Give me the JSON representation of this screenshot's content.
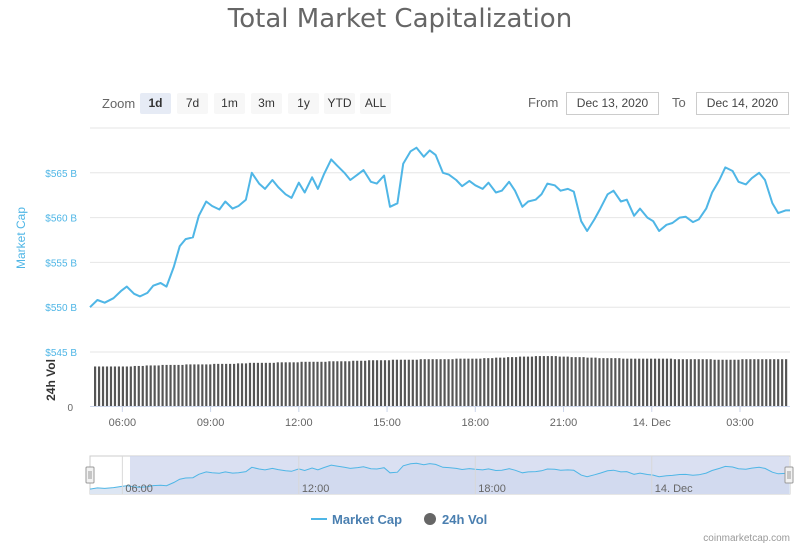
{
  "chart_data": {
    "type": "line",
    "title": "Total Market Capitalization",
    "zoom": {
      "label": "Zoom",
      "buttons": [
        "1d",
        "7d",
        "1m",
        "3m",
        "1y",
        "YTD",
        "ALL"
      ],
      "active": "1d"
    },
    "range": {
      "from_label": "From",
      "from": "Dec 13, 2020",
      "to_label": "To",
      "to": "Dec 14, 2020"
    },
    "y_axis": {
      "label": "Market Cap",
      "ticks": [
        "$545 B",
        "$550 B",
        "$555 B",
        "$560 B",
        "$565 B"
      ],
      "tick_values": [
        545,
        550,
        555,
        560,
        565
      ],
      "ylim": [
        545,
        570
      ],
      "color": "#4fb6e6"
    },
    "volume_axis": {
      "label": "24h Vol",
      "ticks": [
        "0"
      ]
    },
    "x_axis": {
      "ticks": [
        "06:00",
        "09:00",
        "12:00",
        "15:00",
        "18:00",
        "21:00",
        "14. Dec",
        "03:00"
      ],
      "tick_hours": [
        6,
        9,
        12,
        15,
        18,
        21,
        24,
        27
      ],
      "xlim": [
        4.9,
        28.7
      ]
    },
    "navigator": {
      "ticks": [
        "06:00",
        "12:00",
        "18:00",
        "14. Dec"
      ],
      "tick_hours": [
        6,
        12,
        18,
        24
      ]
    },
    "legend": [
      {
        "name": "Market Cap",
        "color": "#4fb6e6",
        "symbol": "line"
      },
      {
        "name": "24h Vol",
        "color": "#666666",
        "symbol": "circle"
      }
    ],
    "series": [
      {
        "name": "Market Cap",
        "color": "#4fb6e6",
        "x": [
          4.9,
          5.15,
          5.4,
          5.7,
          5.95,
          6.15,
          6.4,
          6.6,
          6.85,
          7.05,
          7.3,
          7.5,
          7.75,
          7.95,
          8.15,
          8.4,
          8.6,
          8.85,
          9.05,
          9.3,
          9.5,
          9.75,
          9.95,
          10.2,
          10.4,
          10.65,
          10.85,
          11.1,
          11.3,
          11.55,
          11.75,
          12.0,
          12.2,
          12.45,
          12.65,
          12.85,
          13.1,
          13.3,
          13.55,
          13.75,
          14.0,
          14.2,
          14.45,
          14.65,
          14.9,
          15.1,
          15.35,
          15.55,
          15.8,
          16.0,
          16.25,
          16.45,
          16.65,
          16.9,
          17.1,
          17.35,
          17.55,
          17.8,
          18.0,
          18.25,
          18.45,
          18.7,
          18.9,
          19.15,
          19.35,
          19.6,
          19.8,
          20.05,
          20.25,
          20.45,
          20.7,
          20.9,
          21.15,
          21.35,
          21.6,
          21.8,
          22.05,
          22.25,
          22.5,
          22.7,
          22.95,
          23.15,
          23.4,
          23.6,
          23.85,
          24.05,
          24.25,
          24.5,
          24.7,
          24.95,
          25.15,
          25.4,
          25.6,
          25.85,
          26.05,
          26.3,
          26.5,
          26.75,
          26.95,
          27.2,
          27.4,
          27.65,
          27.85,
          28.1,
          28.3,
          28.55,
          28.7
        ],
        "values": [
          550.0,
          550.8,
          550.5,
          551.0,
          551.8,
          552.3,
          551.5,
          551.2,
          551.6,
          552.4,
          552.7,
          552.3,
          554.5,
          556.8,
          557.6,
          557.8,
          560.2,
          561.8,
          561.3,
          560.9,
          561.8,
          561.0,
          561.3,
          562.0,
          565.0,
          563.8,
          563.2,
          564.2,
          563.4,
          562.6,
          562.2,
          563.9,
          562.8,
          564.5,
          563.2,
          564.8,
          566.5,
          565.8,
          565.0,
          564.2,
          564.8,
          565.3,
          564.0,
          563.8,
          564.7,
          561.2,
          561.6,
          566.0,
          567.4,
          567.8,
          566.8,
          567.5,
          567.0,
          565.0,
          564.8,
          564.2,
          563.5,
          564.1,
          563.6,
          563.2,
          563.9,
          562.8,
          563.0,
          564.0,
          563.0,
          561.2,
          561.8,
          562.0,
          562.6,
          563.8,
          563.6,
          563.0,
          563.2,
          562.9,
          559.6,
          558.5,
          559.8,
          561.0,
          562.6,
          563.0,
          561.8,
          562.0,
          560.2,
          561.0,
          560.0,
          559.6,
          558.5,
          559.2,
          559.4,
          560.0,
          560.1,
          559.5,
          559.8,
          561.0,
          562.8,
          564.2,
          565.6,
          565.2,
          564.0,
          563.7,
          564.4,
          565.0,
          564.2,
          561.6,
          560.5,
          560.8,
          560.8
        ]
      },
      {
        "name": "24h Vol",
        "color": "#666666",
        "note_levels": "relative volume level per bar, 0-1",
        "x_start": 4.9,
        "x_end": 28.7,
        "levels": [
          0.76,
          0.76,
          0.76,
          0.77,
          0.78,
          0.79,
          0.79,
          0.8,
          0.8,
          0.81,
          0.81,
          0.82,
          0.83,
          0.83,
          0.84,
          0.84,
          0.85,
          0.85,
          0.86,
          0.86,
          0.87,
          0.88,
          0.88,
          0.89,
          0.89,
          0.9,
          0.9,
          0.9,
          0.91,
          0.91,
          0.92,
          0.93,
          0.94,
          0.95,
          0.96,
          0.96,
          0.95,
          0.94,
          0.93,
          0.92,
          0.92,
          0.91,
          0.91,
          0.91,
          0.91,
          0.9,
          0.9,
          0.9,
          0.89,
          0.89,
          0.9,
          0.9,
          0.9,
          0.9
        ]
      }
    ]
  },
  "footer": {
    "credit": "coinmarketcap.com"
  }
}
